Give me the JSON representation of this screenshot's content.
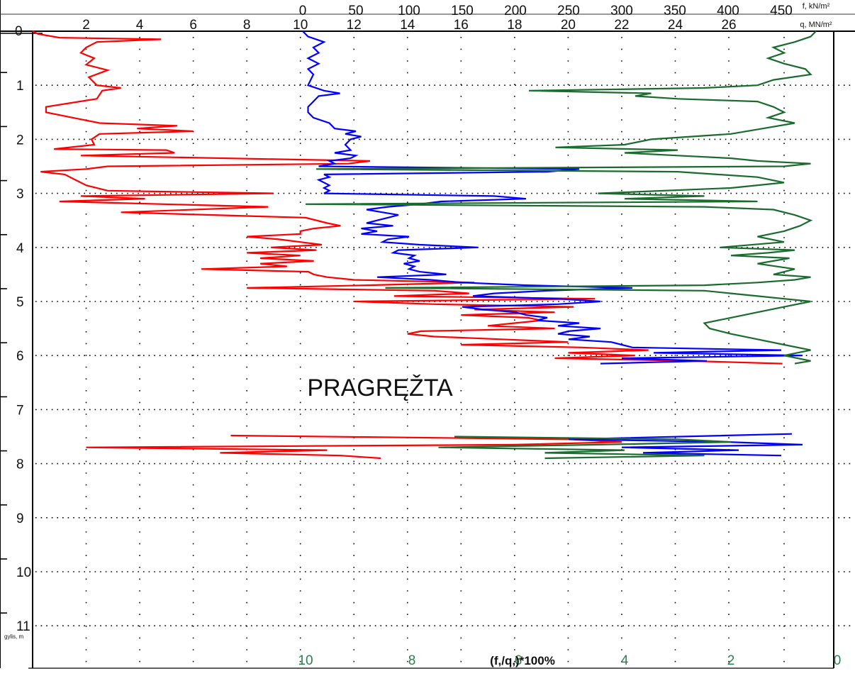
{
  "chart_data": {
    "type": "line",
    "title": "",
    "depth_axis": {
      "label": "gylis, m",
      "range": [
        0,
        11.9
      ],
      "ticks": [
        0,
        1,
        2,
        3,
        4,
        5,
        6,
        7,
        8,
        9,
        10,
        11
      ],
      "inverted": true
    },
    "top_axis_f": {
      "label": "f, kN/m²",
      "range": [
        0,
        450
      ],
      "ticks": [
        0,
        50,
        100,
        150,
        200,
        250,
        300,
        350,
        400,
        450
      ]
    },
    "top_axis_q": {
      "label": "q, MN/m²",
      "range": [
        0,
        28
      ],
      "ticks": [
        2,
        4,
        6,
        8,
        10,
        12,
        14,
        16,
        18,
        20,
        22,
        24,
        26
      ]
    },
    "bottom_axis_ratio": {
      "label": "(f,/q,)*100%",
      "range": [
        10,
        0
      ],
      "ticks": [
        10,
        8,
        6,
        4,
        2,
        0
      ]
    },
    "grid": true,
    "annotations": [
      {
        "text": "PRAGRĘŽTA",
        "depth": 6.6,
        "q": 16.5
      }
    ],
    "colors": {
      "q": "#ff0000",
      "f": "#0000ff",
      "ratio": "#1a6b2e",
      "frame": "#000000",
      "ratio_ticks": "#2e7d4f"
    },
    "series": [
      {
        "key": "q",
        "points": [
          [
            0.0,
            0.0
          ],
          [
            0.05,
            0.2
          ],
          [
            0.12,
            1.0
          ],
          [
            0.15,
            4.8
          ],
          [
            0.2,
            2.4
          ],
          [
            0.3,
            2.0
          ],
          [
            0.4,
            1.8
          ],
          [
            0.5,
            2.3
          ],
          [
            0.62,
            2.0
          ],
          [
            0.72,
            2.8
          ],
          [
            0.85,
            2.1
          ],
          [
            1.0,
            2.4
          ],
          [
            1.05,
            3.3
          ],
          [
            1.1,
            2.6
          ],
          [
            1.25,
            2.4
          ],
          [
            1.4,
            0.5
          ],
          [
            1.5,
            0.5
          ],
          [
            1.6,
            1.5
          ],
          [
            1.7,
            2.5
          ],
          [
            1.75,
            5.4
          ],
          [
            1.8,
            3.9
          ],
          [
            1.85,
            6.0
          ],
          [
            1.9,
            2.5
          ],
          [
            2.0,
            2.2
          ],
          [
            2.1,
            2.3
          ],
          [
            2.18,
            0.8
          ],
          [
            2.2,
            5.0
          ],
          [
            2.25,
            5.3
          ],
          [
            2.3,
            1.8
          ],
          [
            2.4,
            12.6
          ],
          [
            2.45,
            11.8
          ],
          [
            2.5,
            2.8
          ],
          [
            2.55,
            2.0
          ],
          [
            2.6,
            0.3
          ],
          [
            2.65,
            1.2
          ],
          [
            2.75,
            1.6
          ],
          [
            2.85,
            2.0
          ],
          [
            2.95,
            2.8
          ],
          [
            3.0,
            9.0
          ],
          [
            3.05,
            1.8
          ],
          [
            3.1,
            4.2
          ],
          [
            3.15,
            1.0
          ],
          [
            3.25,
            8.8
          ],
          [
            3.35,
            3.3
          ],
          [
            3.45,
            10.2
          ],
          [
            3.55,
            11.0
          ],
          [
            3.6,
            11.5
          ],
          [
            3.65,
            10.5
          ],
          [
            3.7,
            10.0
          ],
          [
            3.75,
            10.0
          ],
          [
            3.8,
            8.0
          ],
          [
            3.85,
            9.2
          ],
          [
            3.9,
            10.0
          ],
          [
            3.95,
            10.8
          ],
          [
            4.0,
            8.9
          ],
          [
            4.05,
            10.6
          ],
          [
            4.1,
            8.0
          ],
          [
            4.15,
            10.0
          ],
          [
            4.2,
            8.5
          ],
          [
            4.25,
            10.5
          ],
          [
            4.3,
            8.5
          ],
          [
            4.35,
            9.5
          ],
          [
            4.4,
            6.3
          ],
          [
            4.45,
            10.3
          ],
          [
            4.5,
            10.5
          ],
          [
            4.55,
            11.0
          ],
          [
            4.6,
            12.0
          ],
          [
            4.65,
            16.5
          ],
          [
            4.7,
            12.5
          ],
          [
            4.75,
            8.0
          ],
          [
            4.8,
            15.0
          ],
          [
            4.85,
            16.3
          ],
          [
            4.9,
            13.5
          ],
          [
            4.95,
            21.0
          ],
          [
            5.0,
            12.0
          ],
          [
            5.05,
            15.0
          ],
          [
            5.1,
            20.2
          ],
          [
            5.15,
            16.5
          ],
          [
            5.2,
            19.5
          ],
          [
            5.25,
            16.0
          ],
          [
            5.3,
            18.5
          ],
          [
            5.35,
            19.0
          ],
          [
            5.4,
            18.0
          ],
          [
            5.45,
            17.0
          ],
          [
            5.5,
            19.5
          ],
          [
            5.55,
            14.5
          ],
          [
            5.6,
            14.0
          ],
          [
            5.65,
            15.0
          ],
          [
            5.7,
            17.5
          ],
          [
            5.75,
            20.0
          ],
          [
            5.8,
            16.0
          ],
          [
            5.85,
            20.5
          ],
          [
            5.9,
            23.0
          ],
          [
            5.95,
            20.0
          ],
          [
            6.0,
            22.5
          ],
          [
            6.05,
            19.5
          ],
          [
            6.1,
            24.5
          ],
          [
            6.15,
            28.0
          ],
          [
            7.48,
            7.4
          ],
          [
            7.55,
            20.0
          ],
          [
            7.6,
            22.0
          ],
          [
            7.65,
            18.0
          ],
          [
            7.7,
            2.0
          ],
          [
            7.75,
            11.0
          ],
          [
            7.8,
            7.0
          ],
          [
            7.85,
            11.5
          ],
          [
            7.9,
            13.0
          ]
        ]
      },
      {
        "key": "f",
        "points": [
          [
            0.0,
            0
          ],
          [
            0.1,
            5
          ],
          [
            0.2,
            20
          ],
          [
            0.3,
            10
          ],
          [
            0.4,
            15
          ],
          [
            0.5,
            5
          ],
          [
            0.6,
            15
          ],
          [
            0.7,
            5
          ],
          [
            0.8,
            10
          ],
          [
            1.0,
            5
          ],
          [
            1.1,
            20
          ],
          [
            1.15,
            35
          ],
          [
            1.2,
            15
          ],
          [
            1.3,
            10
          ],
          [
            1.4,
            5
          ],
          [
            1.5,
            5
          ],
          [
            1.6,
            10
          ],
          [
            1.7,
            25
          ],
          [
            1.8,
            30
          ],
          [
            1.85,
            50
          ],
          [
            1.9,
            40
          ],
          [
            1.95,
            55
          ],
          [
            2.0,
            45
          ],
          [
            2.1,
            40
          ],
          [
            2.2,
            45
          ],
          [
            2.25,
            30
          ],
          [
            2.3,
            50
          ],
          [
            2.35,
            45
          ],
          [
            2.4,
            25
          ],
          [
            2.45,
            30
          ],
          [
            2.5,
            15
          ],
          [
            2.55,
            260
          ],
          [
            2.6,
            230
          ],
          [
            2.65,
            20
          ],
          [
            2.7,
            25
          ],
          [
            2.75,
            15
          ],
          [
            2.8,
            20
          ],
          [
            2.85,
            25
          ],
          [
            2.9,
            20
          ],
          [
            2.95,
            25
          ],
          [
            3.0,
            20
          ],
          [
            3.05,
            180
          ],
          [
            3.1,
            210
          ],
          [
            3.15,
            130
          ],
          [
            3.2,
            110
          ],
          [
            3.25,
            80
          ],
          [
            3.3,
            60
          ],
          [
            3.35,
            75
          ],
          [
            3.4,
            90
          ],
          [
            3.45,
            80
          ],
          [
            3.5,
            70
          ],
          [
            3.55,
            60
          ],
          [
            3.6,
            85
          ],
          [
            3.65,
            55
          ],
          [
            3.7,
            70
          ],
          [
            3.75,
            55
          ],
          [
            3.8,
            100
          ],
          [
            3.85,
            80
          ],
          [
            3.9,
            75
          ],
          [
            3.95,
            110
          ],
          [
            4.0,
            165
          ],
          [
            4.05,
            90
          ],
          [
            4.1,
            85
          ],
          [
            4.15,
            105
          ],
          [
            4.2,
            100
          ],
          [
            4.25,
            110
          ],
          [
            4.3,
            95
          ],
          [
            4.35,
            105
          ],
          [
            4.4,
            100
          ],
          [
            4.45,
            110
          ],
          [
            4.5,
            135
          ],
          [
            4.55,
            70
          ],
          [
            4.6,
            120
          ],
          [
            4.65,
            150
          ],
          [
            4.7,
            210
          ],
          [
            4.75,
            310
          ],
          [
            4.8,
            230
          ],
          [
            4.85,
            180
          ],
          [
            4.9,
            160
          ],
          [
            4.95,
            240
          ],
          [
            5.0,
            280
          ],
          [
            5.05,
            240
          ],
          [
            5.1,
            150
          ],
          [
            5.15,
            170
          ],
          [
            5.2,
            200
          ],
          [
            5.25,
            210
          ],
          [
            5.3,
            230
          ],
          [
            5.35,
            220
          ],
          [
            5.4,
            260
          ],
          [
            5.45,
            240
          ],
          [
            5.5,
            280
          ],
          [
            5.55,
            250
          ],
          [
            5.6,
            240
          ],
          [
            5.65,
            270
          ],
          [
            5.7,
            250
          ],
          [
            5.75,
            290
          ],
          [
            5.8,
            300
          ],
          [
            5.85,
            310
          ],
          [
            5.9,
            450
          ],
          [
            5.95,
            330
          ],
          [
            6.0,
            470
          ],
          [
            6.05,
            300
          ],
          [
            6.1,
            380
          ],
          [
            6.15,
            280
          ],
          [
            7.45,
            460
          ],
          [
            7.55,
            250
          ],
          [
            7.6,
            400
          ],
          [
            7.65,
            470
          ],
          [
            7.7,
            300
          ],
          [
            7.75,
            410
          ],
          [
            7.8,
            320
          ],
          [
            7.85,
            450
          ]
        ]
      },
      {
        "key": "ratio",
        "points": [
          [
            0.0,
            0.4
          ],
          [
            0.1,
            0.5
          ],
          [
            0.2,
            0.8
          ],
          [
            0.3,
            1.2
          ],
          [
            0.4,
            1.0
          ],
          [
            0.5,
            1.3
          ],
          [
            0.6,
            1.0
          ],
          [
            0.7,
            0.6
          ],
          [
            0.8,
            0.5
          ],
          [
            0.9,
            1.2
          ],
          [
            1.0,
            1.5
          ],
          [
            1.05,
            2.5
          ],
          [
            1.1,
            5.8
          ],
          [
            1.15,
            3.5
          ],
          [
            1.2,
            3.8
          ],
          [
            1.25,
            3.0
          ],
          [
            1.3,
            1.5
          ],
          [
            1.4,
            1.2
          ],
          [
            1.5,
            1.0
          ],
          [
            1.6,
            1.3
          ],
          [
            1.7,
            0.8
          ],
          [
            1.8,
            1.4
          ],
          [
            1.9,
            2.0
          ],
          [
            2.0,
            3.5
          ],
          [
            2.1,
            4.0
          ],
          [
            2.15,
            5.3
          ],
          [
            2.2,
            3.0
          ],
          [
            2.25,
            4.0
          ],
          [
            2.3,
            3.0
          ],
          [
            2.35,
            2.0
          ],
          [
            2.4,
            1.5
          ],
          [
            2.45,
            0.5
          ],
          [
            2.5,
            1.0
          ],
          [
            2.55,
            9.8
          ],
          [
            2.6,
            3.0
          ],
          [
            2.7,
            1.5
          ],
          [
            2.8,
            1.0
          ],
          [
            2.9,
            2.0
          ],
          [
            3.0,
            4.5
          ],
          [
            3.05,
            2.5
          ],
          [
            3.1,
            4.0
          ],
          [
            3.15,
            1.5
          ],
          [
            3.2,
            10.0
          ],
          [
            3.25,
            2.5
          ],
          [
            3.3,
            1.2
          ],
          [
            3.4,
            0.8
          ],
          [
            3.5,
            0.5
          ],
          [
            3.6,
            0.7
          ],
          [
            3.7,
            1.0
          ],
          [
            3.8,
            1.5
          ],
          [
            3.9,
            1.0
          ],
          [
            4.0,
            2.2
          ],
          [
            4.05,
            0.8
          ],
          [
            4.1,
            1.3
          ],
          [
            4.15,
            2.0
          ],
          [
            4.2,
            0.9
          ],
          [
            4.3,
            1.5
          ],
          [
            4.4,
            0.8
          ],
          [
            4.5,
            1.2
          ],
          [
            4.55,
            0.5
          ],
          [
            4.6,
            0.8
          ],
          [
            4.65,
            1.5
          ],
          [
            4.7,
            2.5
          ],
          [
            4.75,
            8.5
          ],
          [
            4.8,
            2.5
          ],
          [
            4.85,
            2.0
          ],
          [
            4.9,
            1.5
          ],
          [
            4.95,
            1.0
          ],
          [
            5.0,
            0.5
          ],
          [
            5.1,
            1.0
          ],
          [
            5.2,
            1.5
          ],
          [
            5.3,
            2.0
          ],
          [
            5.4,
            2.5
          ],
          [
            5.5,
            2.4
          ],
          [
            5.6,
            2.0
          ],
          [
            5.7,
            1.5
          ],
          [
            5.8,
            1.0
          ],
          [
            5.9,
            0.5
          ],
          [
            6.0,
            1.0
          ],
          [
            6.1,
            0.5
          ],
          [
            6.15,
            0.8
          ],
          [
            7.5,
            7.2
          ],
          [
            7.55,
            3.0
          ],
          [
            7.6,
            2.0
          ],
          [
            7.65,
            4.5
          ],
          [
            7.7,
            7.5
          ],
          [
            7.75,
            4.0
          ],
          [
            7.8,
            5.5
          ],
          [
            7.85,
            2.5
          ],
          [
            7.9,
            5.5
          ]
        ]
      }
    ]
  }
}
